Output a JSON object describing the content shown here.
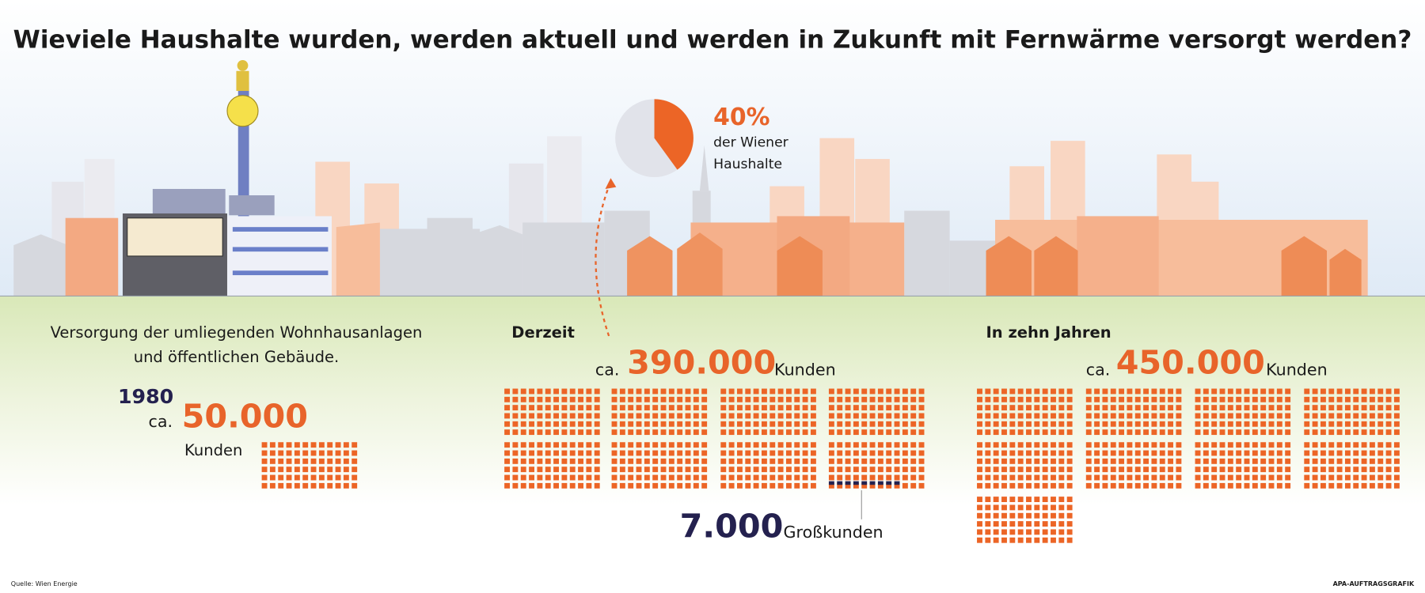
{
  "title": "Wieviele Haushalte wurden, werden aktuell und werden in Zukunft mit Fernwärme versorgt werden?",
  "share": {
    "value": 40,
    "value_label": "40%",
    "caption_lines": [
      "der Wiener",
      "Haushalte"
    ]
  },
  "past": {
    "description_lines": [
      "Versorgung der umliegenden Wohnhausanlagen",
      "und öffentlichen Gebäude."
    ],
    "year": "1980",
    "prefix": "ca.",
    "amount": "50.000",
    "unit": "Kunden"
  },
  "current": {
    "heading": "Derzeit",
    "prefix": "ca.",
    "amount": "390.000",
    "unit": "Kunden",
    "large_customers": {
      "amount": "7.000",
      "unit": "Großkunden"
    }
  },
  "future": {
    "heading": "In zehn Jahren",
    "prefix": "ca.",
    "amount": "450.000",
    "unit": "Kunden"
  },
  "footer": {
    "source": "Quelle: Wien Energie",
    "credit": "APA-AUFTRAGSGRAFIK"
  }
}
